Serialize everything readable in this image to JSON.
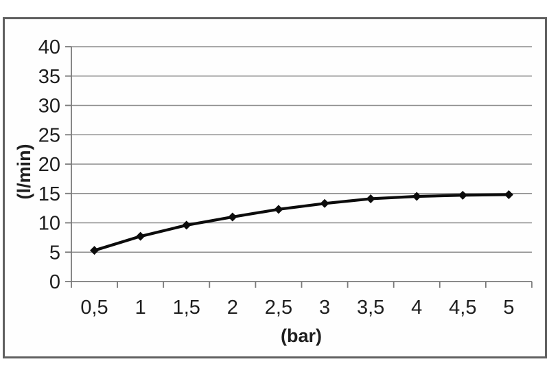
{
  "chart_data": {
    "type": "line",
    "xlabel": "(bar)",
    "ylabel": "(l/min)",
    "x": [
      0.5,
      1,
      1.5,
      2,
      2.5,
      3,
      3.5,
      4,
      4.5,
      5
    ],
    "x_tick_labels": [
      "0,5",
      "1",
      "1,5",
      "2",
      "2,5",
      "3",
      "3,5",
      "4",
      "4,5",
      "5"
    ],
    "values": [
      5.3,
      7.7,
      9.6,
      11.0,
      12.3,
      13.3,
      14.1,
      14.5,
      14.7,
      14.8
    ],
    "y_ticks": [
      0,
      5,
      10,
      15,
      20,
      25,
      30,
      35,
      40
    ],
    "y_tick_labels": [
      "0",
      "5",
      "10",
      "15",
      "20",
      "25",
      "30",
      "35",
      "40"
    ],
    "ylim": [
      0,
      40
    ],
    "grid": "horizontal",
    "legend_position": "none",
    "marker": "diamond",
    "decimal_separator": ",",
    "colors": {
      "line": "#0c0c0c",
      "marker": "#0c0c0c",
      "grid": "#8c8c8c",
      "axis": "#7a7a7a",
      "text": "#1e1e1e",
      "frame_border": "#606060",
      "background": "#ffffff"
    }
  }
}
